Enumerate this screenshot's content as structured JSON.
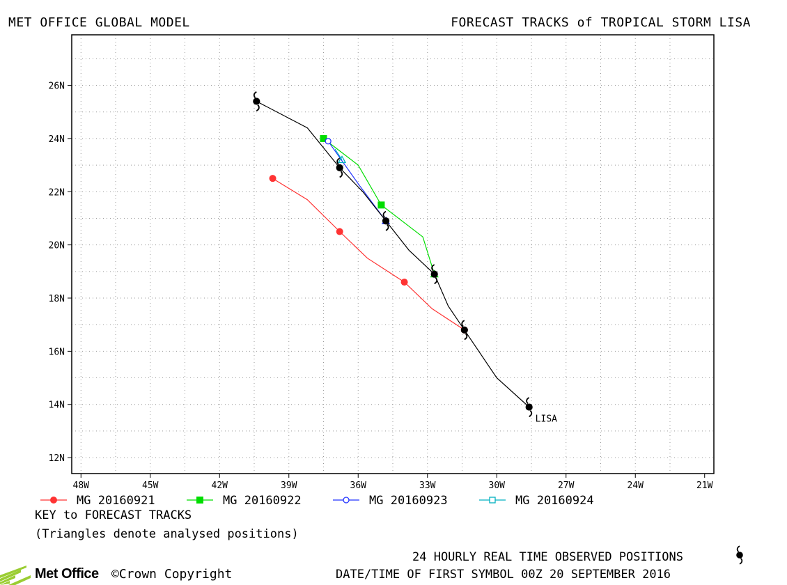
{
  "header": {
    "left_title": "MET OFFICE GLOBAL MODEL",
    "right_title": "FORECAST TRACKS of TROPICAL STORM LISA"
  },
  "chart_data": {
    "type": "scatter",
    "title": "FORECAST TRACKS of TROPICAL STORM LISA",
    "xlabel": "",
    "ylabel": "",
    "xlim": [
      -48.4,
      -20.6
    ],
    "ylim": [
      11.4,
      27.9
    ],
    "grid": true,
    "x_ticks": [
      -48,
      -45,
      -42,
      -39,
      -36,
      -33,
      -30,
      -27,
      -24,
      -21
    ],
    "x_tick_labels": [
      "48W",
      "45W",
      "42W",
      "39W",
      "36W",
      "33W",
      "30W",
      "27W",
      "24W",
      "21W"
    ],
    "y_ticks": [
      12,
      14,
      16,
      18,
      20,
      22,
      24,
      26
    ],
    "y_tick_labels": [
      "12N",
      "14N",
      "16N",
      "18N",
      "20N",
      "22N",
      "24N",
      "26N"
    ],
    "observed": {
      "label": "LISA",
      "color": "#000000",
      "points": [
        [
          -28.6,
          13.9
        ],
        [
          -31.4,
          16.8
        ],
        [
          -32.7,
          18.9
        ],
        [
          -34.8,
          20.9
        ],
        [
          -36.8,
          22.9
        ],
        [
          -40.4,
          25.4
        ]
      ],
      "path": [
        [
          -28.6,
          13.9
        ],
        [
          -30.0,
          15.0
        ],
        [
          -31.4,
          16.8
        ],
        [
          -32.1,
          17.7
        ],
        [
          -32.7,
          18.9
        ],
        [
          -33.8,
          19.8
        ],
        [
          -34.8,
          20.9
        ],
        [
          -35.8,
          22.0
        ],
        [
          -36.8,
          22.9
        ],
        [
          -38.2,
          24.4
        ],
        [
          -40.4,
          25.4
        ]
      ]
    },
    "series": [
      {
        "name": "MG 20160921",
        "color": "#ff3333",
        "marker": "circle-filled",
        "points": [
          [
            -31.4,
            16.8
          ],
          [
            -34.0,
            18.6
          ],
          [
            -36.8,
            20.5
          ],
          [
            -39.7,
            22.5
          ]
        ],
        "path": [
          [
            -31.4,
            16.8
          ],
          [
            -32.8,
            17.6
          ],
          [
            -34.0,
            18.6
          ],
          [
            -35.6,
            19.5
          ],
          [
            -36.8,
            20.5
          ],
          [
            -38.2,
            21.7
          ],
          [
            -39.7,
            22.5
          ]
        ]
      },
      {
        "name": "MG 20160922",
        "color": "#00dd00",
        "marker": "square-filled",
        "points": [
          [
            -32.7,
            18.9
          ],
          [
            -35.0,
            21.5
          ],
          [
            -37.5,
            24.0
          ]
        ],
        "path": [
          [
            -32.7,
            18.9
          ],
          [
            -33.2,
            20.3
          ],
          [
            -35.0,
            21.5
          ],
          [
            -36.0,
            23.0
          ],
          [
            -37.5,
            24.0
          ]
        ]
      },
      {
        "name": "MG 20160923",
        "color": "#2233ff",
        "marker": "circle-open",
        "points": [
          [
            -34.8,
            20.9
          ],
          [
            -37.3,
            23.9
          ]
        ],
        "path": [
          [
            -34.8,
            20.9
          ],
          [
            -36.0,
            22.3
          ],
          [
            -37.3,
            23.9
          ]
        ]
      },
      {
        "name": "MG 20160924",
        "color": "#00b0c0",
        "marker": "square-open",
        "points": [
          [
            -36.7,
            23.2
          ]
        ],
        "path": [
          [
            -36.7,
            23.2
          ],
          [
            -37.0,
            23.6
          ]
        ]
      }
    ],
    "legend_placement": "bottom"
  },
  "footer": {
    "key_title": "KEY to FORECAST TRACKS",
    "key_note": "(Triangles denote analysed positions)",
    "observed_note": "24 HOURLY REAL TIME OBSERVED POSITIONS",
    "first_symbol": "DATE/TIME OF FIRST SYMBOL 00Z 20 SEPTEMBER 2016",
    "logo_text": "Met Office",
    "copyright": "©Crown Copyright"
  }
}
